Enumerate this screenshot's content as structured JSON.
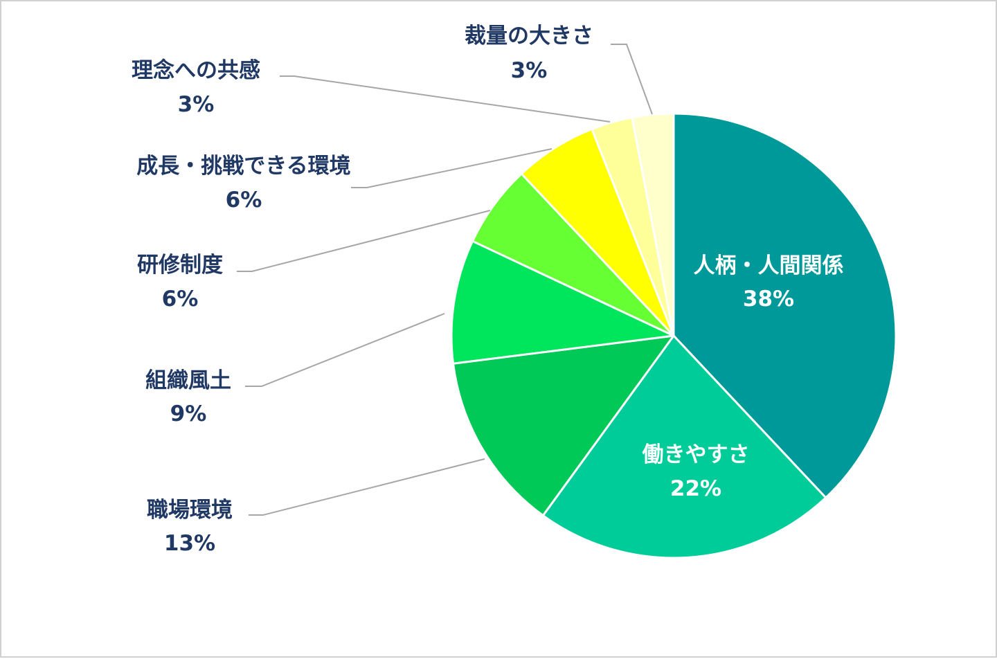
{
  "chart_data": {
    "type": "pie",
    "start_angle_deg": 0,
    "direction": "clockwise",
    "slices": [
      {
        "label": "人柄・人間関係",
        "value": 38,
        "display": "38%",
        "color": "#009999",
        "label_color": "#ffffff"
      },
      {
        "label": "働きやすさ",
        "value": 22,
        "display": "22%",
        "color": "#00CC99",
        "label_color": "#ffffff"
      },
      {
        "label": "職場環境",
        "value": 13,
        "display": "13%",
        "color": "#00C957",
        "label_color": "#1f3864"
      },
      {
        "label": "組織風土",
        "value": 9,
        "display": "9%",
        "color": "#00E65C",
        "label_color": "#1f3864"
      },
      {
        "label": "研修制度",
        "value": 6,
        "display": "6%",
        "color": "#66FF33",
        "label_color": "#1f3864"
      },
      {
        "label": "成長・挑戦できる環境",
        "value": 6,
        "display": "6%",
        "color": "#FFFF00",
        "label_color": "#1f3864"
      },
      {
        "label": "理念への共感",
        "value": 3,
        "display": "3%",
        "color": "#FFFF99",
        "label_color": "#1f3864"
      },
      {
        "label": "裁量の大きさ",
        "value": 3,
        "display": "3%",
        "color": "#FFFFCC",
        "label_color": "#1f3864"
      }
    ]
  }
}
